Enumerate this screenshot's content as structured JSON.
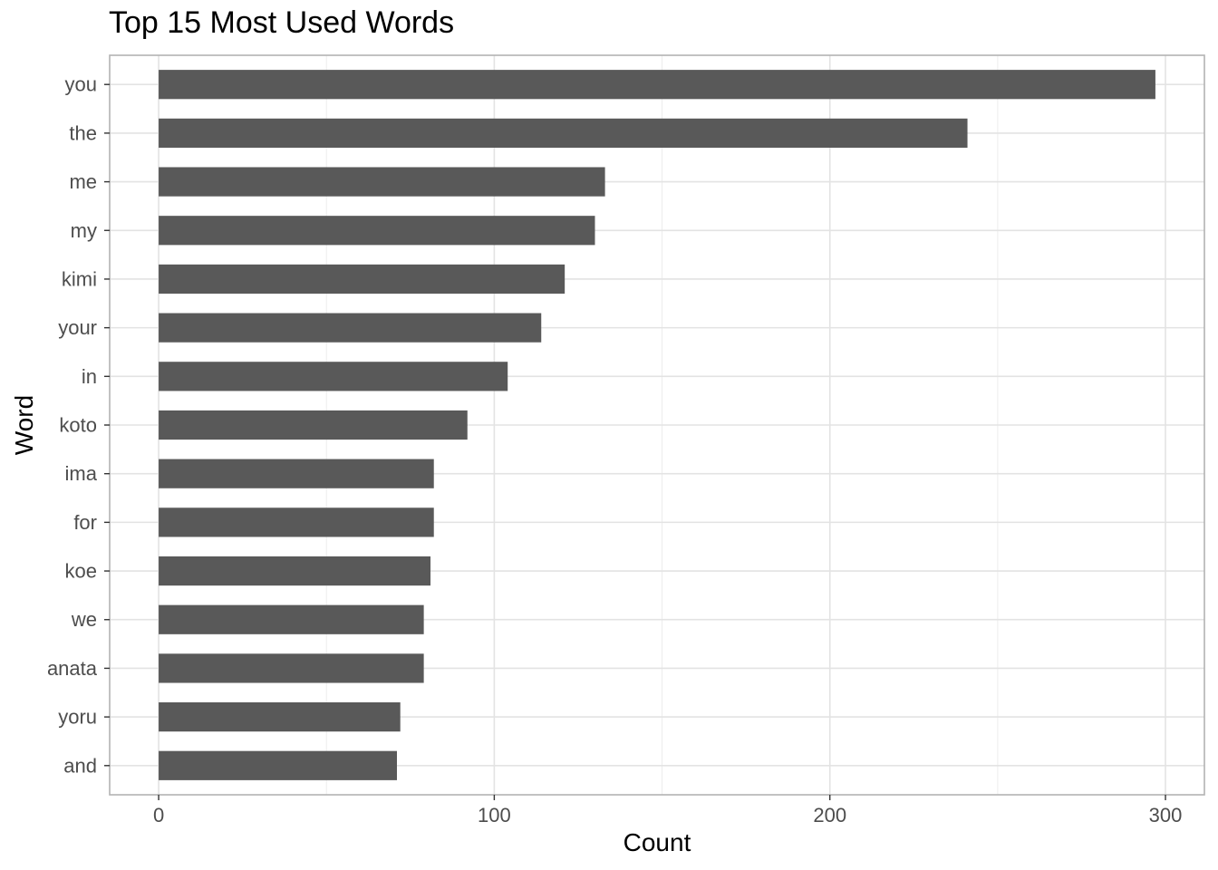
{
  "chart_data": {
    "type": "bar",
    "orientation": "horizontal",
    "title": "Top 15 Most Used Words",
    "xlabel": "Count",
    "ylabel": "Word",
    "categories": [
      "you",
      "the",
      "me",
      "my",
      "kimi",
      "your",
      "in",
      "koto",
      "ima",
      "for",
      "koe",
      "we",
      "anata",
      "yoru",
      "and"
    ],
    "values": [
      297,
      241,
      133,
      130,
      121,
      114,
      104,
      92,
      82,
      82,
      81,
      79,
      79,
      72,
      71
    ],
    "x_ticks": [
      0,
      100,
      200,
      300
    ],
    "xlim": [
      -14.6,
      311.6
    ],
    "grid": true,
    "legend": "none",
    "bar_color": "#595959",
    "grid_color": "#ebebeb",
    "panel_border_color": "#b3b3b3"
  }
}
